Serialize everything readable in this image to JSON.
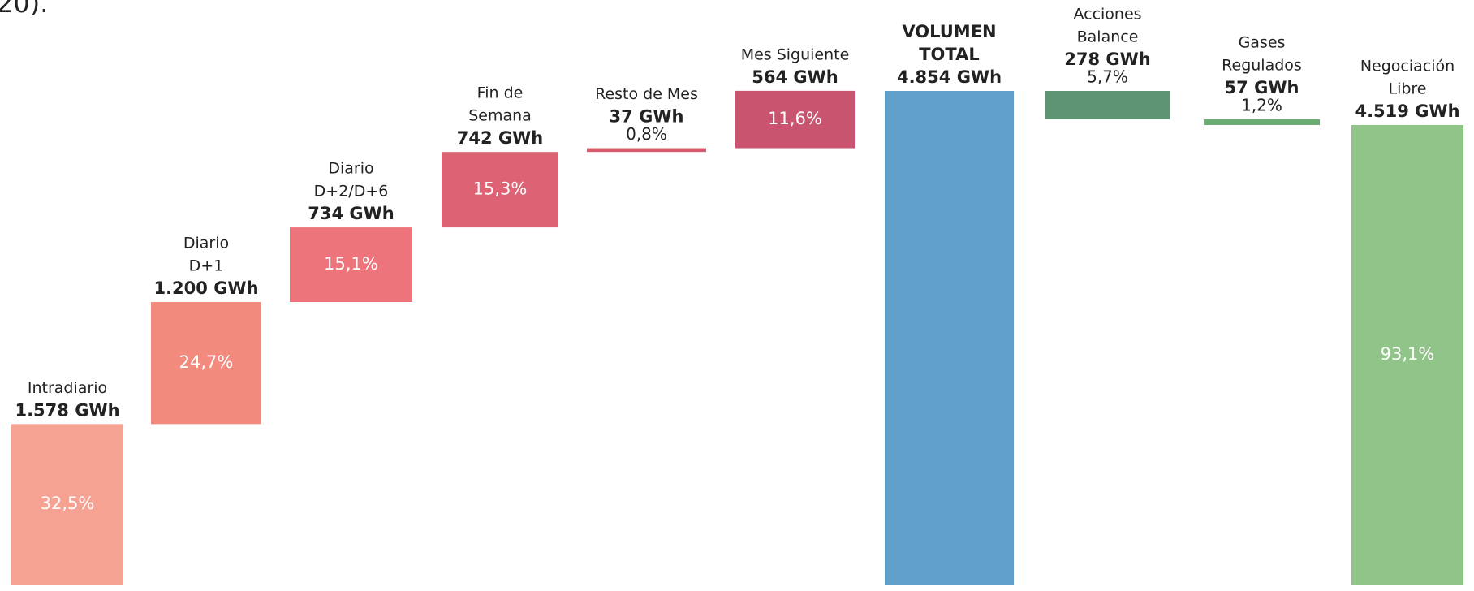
{
  "fragment": "20).",
  "chart_data": {
    "type": "waterfall",
    "categories": [
      [
        "Intradiario"
      ],
      [
        "Diario",
        "D+1"
      ],
      [
        "Diario",
        "D+2/D+6"
      ],
      [
        "Fin de",
        "Semana"
      ],
      [
        "Resto de Mes"
      ],
      [
        "Mes Siguiente"
      ],
      [
        "VOLUMEN",
        "TOTAL"
      ],
      [
        "Acciones",
        "Balance"
      ],
      [
        "Gases",
        "Regulados"
      ],
      [
        "Negociación",
        "Libre"
      ]
    ],
    "kinds": [
      "increase",
      "increase",
      "increase",
      "increase",
      "increase",
      "increase",
      "total",
      "decrease",
      "decrease",
      "total"
    ],
    "values": [
      1578,
      1200,
      734,
      742,
      37,
      564,
      4854,
      278,
      57,
      4519
    ],
    "value_labels": [
      "1.578 GWh",
      "1.200 GWh",
      "734 GWh",
      "742 GWh",
      "37 GWh",
      "564 GWh",
      "4.854 GWh",
      "278 GWh",
      "57 GWh",
      "4.519 GWh"
    ],
    "percents": [
      32.5,
      24.7,
      15.1,
      15.3,
      0.8,
      11.6,
      null,
      5.7,
      1.2,
      93.1
    ],
    "percent_labels": [
      "32,5%",
      "24,7%",
      "15,1%",
      "15,3%",
      "0,8%",
      "11,6%",
      null,
      "5,7%",
      "1,2%",
      "93,1%"
    ],
    "colors": [
      "#f6a292",
      "#f28b7e",
      "#ec747a",
      "#dd6273",
      "#d65a6c",
      "#c8546f",
      "#609fca",
      "#5f9473",
      "#6aab72",
      "#91c488"
    ]
  }
}
